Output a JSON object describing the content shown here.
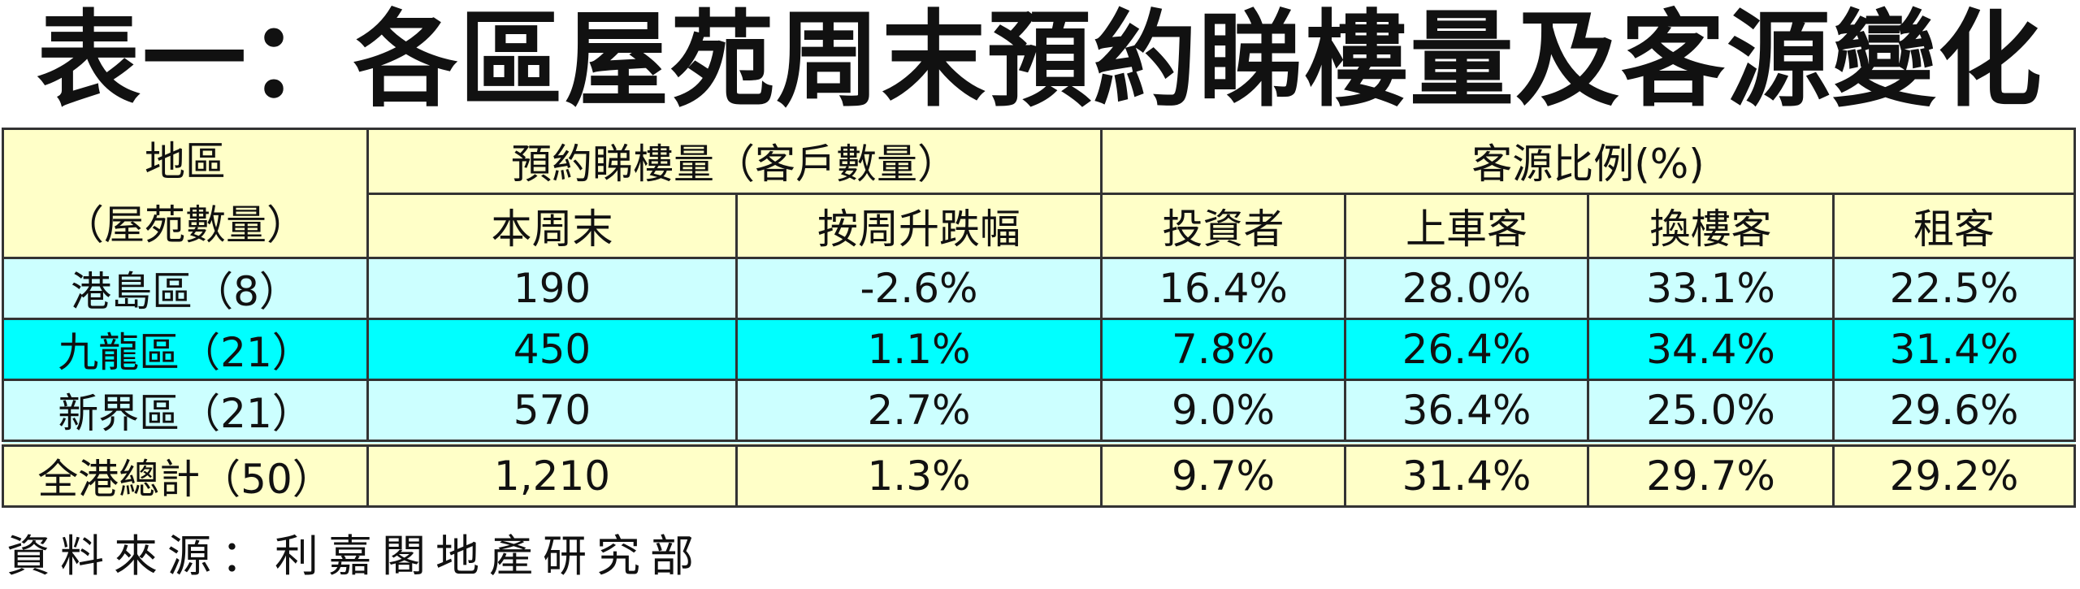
{
  "title": "表一：各區屋苑周末預約睇樓量及客源變化",
  "table": {
    "header": {
      "region": "地區",
      "region_sub": "（屋苑數量）",
      "booking": "預約睇樓量（客戶數量）",
      "source": "客源比例(%)",
      "columns": [
        "本周末",
        "按周升跌幅",
        "投資者",
        "上車客",
        "換樓客",
        "租客"
      ]
    },
    "rows": [
      [
        "港島區（8）",
        "190",
        "-2.6%",
        "16.4%",
        "28.0%",
        "33.1%",
        "22.5%"
      ],
      [
        "九龍區（21）",
        "450",
        "1.1%",
        "7.8%",
        "26.4%",
        "34.4%",
        "31.4%"
      ],
      [
        "新界區（21）",
        "570",
        "2.7%",
        "9.0%",
        "36.4%",
        "25.0%",
        "29.6%"
      ]
    ],
    "total": [
      "全港總計（50）",
      "1,210",
      "1.3%",
      "9.7%",
      "31.4%",
      "29.7%",
      "29.2%"
    ]
  },
  "footer": "資料來源：利嘉閣地產研究部"
}
